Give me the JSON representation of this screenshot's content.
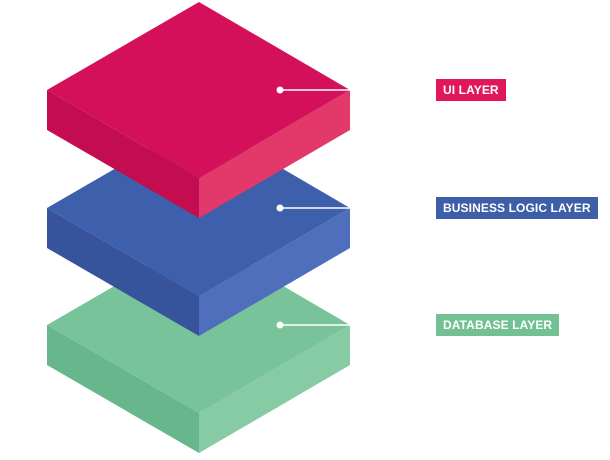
{
  "colors": {
    "background": "#ffffff",
    "connector": "#ffffff"
  },
  "layers": [
    {
      "id": "database",
      "label": "DATABASE LAYER",
      "colors": {
        "top": "#78c39a",
        "left": "#68b68b",
        "right": "#86cba4",
        "label_bg": "#72c093"
      }
    },
    {
      "id": "business",
      "label": "BUSINESS LOGIC LAYER",
      "colors": {
        "top": "#3d5fac",
        "left": "#36539b",
        "right": "#4f6fbd",
        "label_bg": "#3f5ea8"
      }
    },
    {
      "id": "ui",
      "label": "UI LAYER",
      "colors": {
        "top": "#d5105a",
        "left": "#c40d50",
        "right": "#e3386a",
        "label_bg": "#e0175b"
      }
    }
  ]
}
